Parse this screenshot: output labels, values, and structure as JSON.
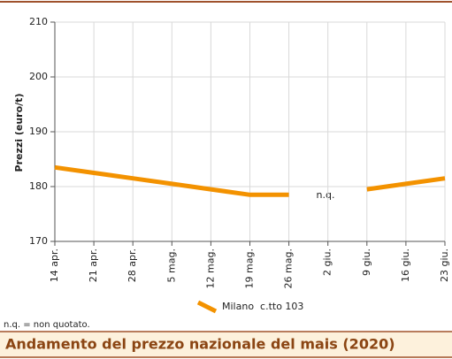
{
  "chart_data": {
    "type": "line",
    "title": "Andamento del prezzo nazionale del mais (2020)",
    "y_label": "Prezzi (euro/t)",
    "categories": [
      "14 apr.",
      "21 apr.",
      "28 apr.",
      "5 mag.",
      "12 mag.",
      "19 mag.",
      "26 mag.",
      "2 giu.",
      "9 giu.",
      "16 giu.",
      "23 giu."
    ],
    "series": [
      {
        "name": "Milano  c.tto 103",
        "color": "#f39200",
        "values": [
          183.5,
          182.5,
          181.5,
          180.5,
          179.5,
          178.5,
          178.5,
          null,
          179.5,
          180.5,
          181.5
        ]
      }
    ],
    "ylim": [
      170,
      210
    ],
    "yticks": [
      170,
      180,
      190,
      200,
      210
    ],
    "grid": true,
    "annotation": "n.q.",
    "footnote": "n.q. = non quotato."
  }
}
